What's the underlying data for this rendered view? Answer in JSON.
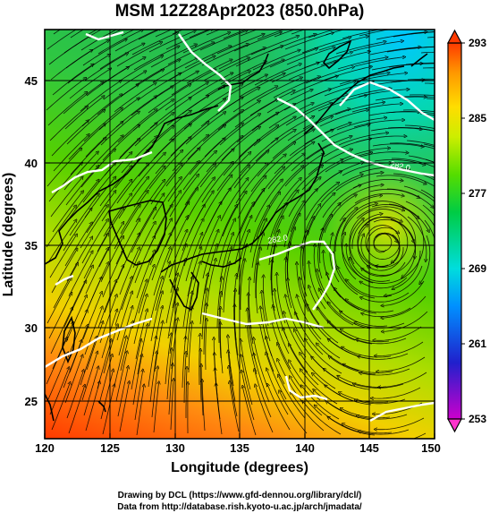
{
  "title": "MSM 12Z28Apr2023 (850.0hPa)",
  "xlabel": "Longitude (degrees)",
  "ylabel": "Latitude  (degrees)",
  "credits": {
    "line1": "Drawing by DCL (https://www.gfd-dennou.org/library/dcl/)",
    "line2": "Data from http://database.rish.kyoto-u.ac.jp/arch/jmadata/"
  },
  "x_ticks": [
    "120",
    "125",
    "130",
    "135",
    "140",
    "145",
    "150"
  ],
  "y_ticks": [
    "25",
    "30",
    "35",
    "40",
    "45"
  ],
  "colorbar": {
    "ticks": [
      "253",
      "261",
      "269",
      "277",
      "285",
      "293"
    ],
    "range": [
      253,
      293
    ],
    "colors": [
      "#cc00cc",
      "#2020cc",
      "#00a0ff",
      "#00dddd",
      "#00cc44",
      "#55dd00",
      "#ccee00",
      "#ffdd00",
      "#ff9900",
      "#ff4400"
    ]
  },
  "contour_labels": [
    "282.0",
    "282.0"
  ],
  "chart_data": {
    "type": "heatmap",
    "title": "MSM 12Z28Apr2023 (850.0hPa)",
    "xlabel": "Longitude (degrees)",
    "ylabel": "Latitude  (degrees)",
    "xlim": [
      120,
      150
    ],
    "ylim": [
      22.4,
      47.6
    ],
    "value_range": [
      253,
      293
    ],
    "field": "temperature (K), shaded; wind streamlines overlaid",
    "grid": true,
    "colorbar": "right",
    "features": {
      "low_center_lonlat": [
        146,
        34.5
      ]
    }
  }
}
